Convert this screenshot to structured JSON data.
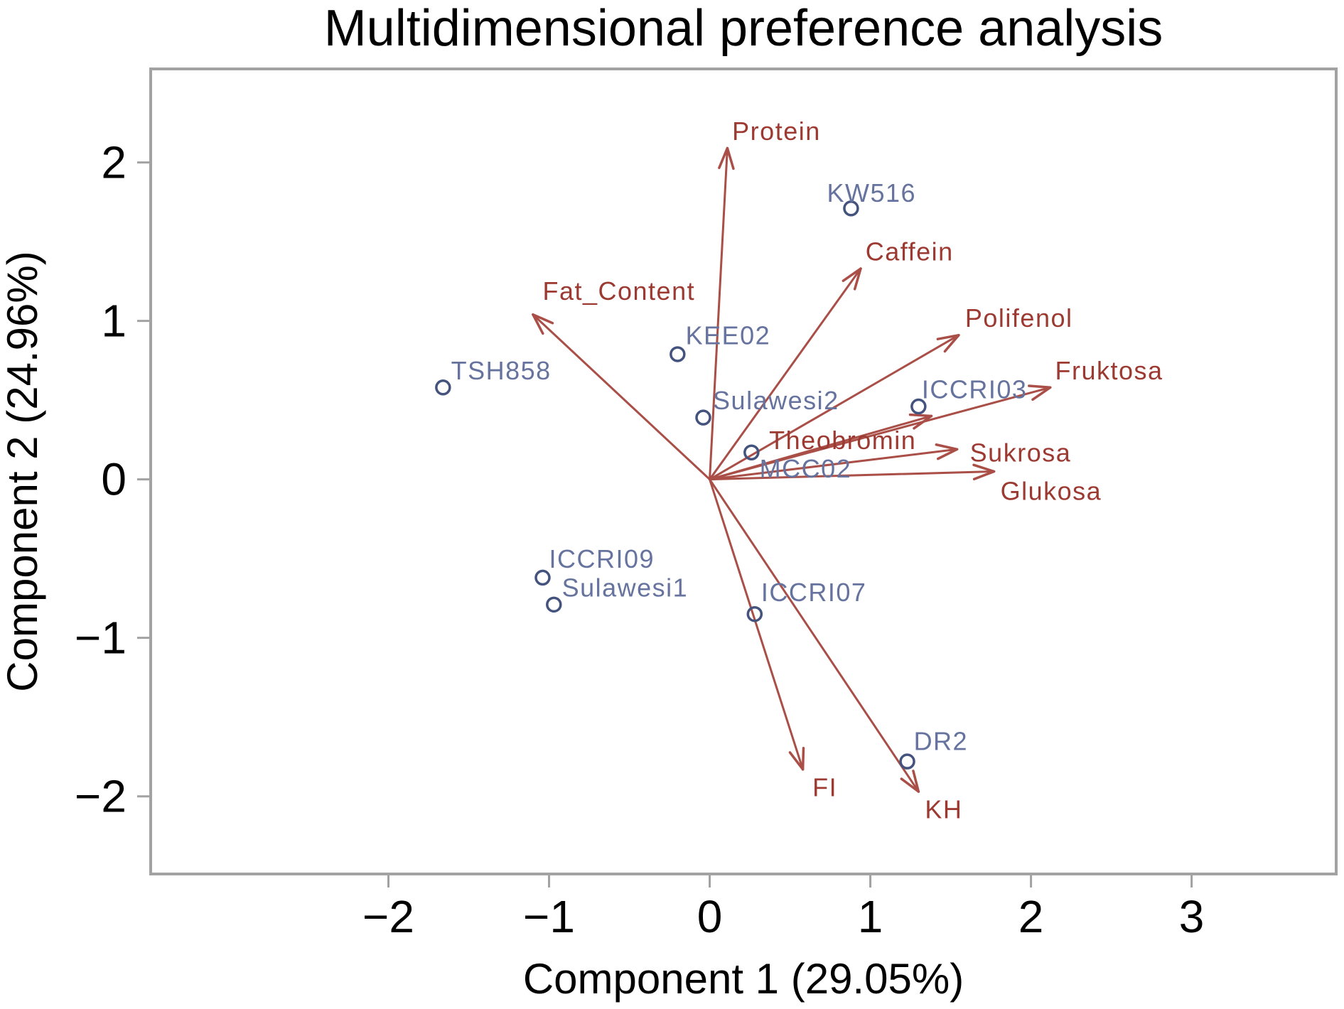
{
  "figure": {
    "title": "Multidimensional preference analysis"
  },
  "chart_data": {
    "type": "scatter",
    "subtype": "mdpref-biplot",
    "title": "Multidimensional preference analysis",
    "xlabel": "Component 1 (29.05%)",
    "ylabel": "Component 2 (24.96%)",
    "xlim": [
      -3.48,
      3.9
    ],
    "ylim": [
      -2.49,
      2.59
    ],
    "grid": false,
    "legend": "none",
    "x_ticks": [
      {
        "value": -2,
        "label": "−2"
      },
      {
        "value": -1,
        "label": "−1"
      },
      {
        "value": 0,
        "label": "0"
      },
      {
        "value": 1,
        "label": "1"
      },
      {
        "value": 2,
        "label": "2"
      },
      {
        "value": 3,
        "label": "3"
      }
    ],
    "y_ticks": [
      {
        "value": 2,
        "label": "2"
      },
      {
        "value": 1,
        "label": "1"
      },
      {
        "value": 0,
        "label": "0"
      },
      {
        "value": -1,
        "label": "−1"
      },
      {
        "value": -2,
        "label": "−2"
      }
    ],
    "colors": {
      "background": "#ffffff",
      "frame": "#a2a2a2",
      "tick": "#a2a2a2",
      "axis_text": "#000000",
      "arrow": "#aa4f47",
      "attribute_label": "#9c3a32",
      "sample_label": "#66739e",
      "sample_marker": "#44537e"
    },
    "vectors": [
      {
        "label": "Protein",
        "x": 0.11,
        "y": 2.09,
        "label_x": 0.14,
        "label_y": 2.2
      },
      {
        "label": "Caffein",
        "x": 0.94,
        "y": 1.33,
        "label_x": 0.97,
        "label_y": 1.44
      },
      {
        "label": "Fat_Content",
        "x": -1.1,
        "y": 1.04,
        "label_x": -1.04,
        "label_y": 1.19
      },
      {
        "label": "Polifenol",
        "x": 1.55,
        "y": 0.91,
        "label_x": 1.59,
        "label_y": 1.02
      },
      {
        "label": "Fruktosa",
        "x": 2.12,
        "y": 0.58,
        "label_x": 2.15,
        "label_y": 0.69
      },
      {
        "label": "Theobromin",
        "x": 1.38,
        "y": 0.4,
        "label_x": 0.37,
        "label_y": 0.25
      },
      {
        "label": "Sukrosa",
        "x": 1.54,
        "y": 0.19,
        "label_x": 1.62,
        "label_y": 0.17
      },
      {
        "label": "Glukosa",
        "x": 1.77,
        "y": 0.05,
        "label_x": 1.81,
        "label_y": -0.07
      },
      {
        "label": "FI",
        "x": 0.58,
        "y": -1.83,
        "label_x": 0.64,
        "label_y": -1.94
      },
      {
        "label": "KH",
        "x": 1.3,
        "y": -1.97,
        "label_x": 1.34,
        "label_y": -2.08
      }
    ],
    "points": [
      {
        "label": "KW516",
        "x": 0.88,
        "y": 1.71,
        "label_x": 0.73,
        "label_y": 1.81
      },
      {
        "label": "KEE02",
        "x": -0.2,
        "y": 0.79,
        "label_x": -0.15,
        "label_y": 0.91
      },
      {
        "label": "TSH858",
        "x": -1.66,
        "y": 0.58,
        "label_x": -1.61,
        "label_y": 0.69
      },
      {
        "label": "Sulawesi2",
        "x": -0.04,
        "y": 0.39,
        "label_x": 0.02,
        "label_y": 0.5
      },
      {
        "label": "MCC02",
        "x": 0.26,
        "y": 0.17,
        "label_x": 0.31,
        "label_y": 0.07
      },
      {
        "label": "ICCRI03",
        "x": 1.3,
        "y": 0.46,
        "label_x": 1.32,
        "label_y": 0.57
      },
      {
        "label": "ICCRI09",
        "x": -1.04,
        "y": -0.62,
        "label_x": -1.0,
        "label_y": -0.5
      },
      {
        "label": "Sulawesi1",
        "x": -0.97,
        "y": -0.79,
        "label_x": -0.92,
        "label_y": -0.68
      },
      {
        "label": "ICCRI07",
        "x": 0.28,
        "y": -0.85,
        "label_x": 0.32,
        "label_y": -0.71
      },
      {
        "label": "DR2",
        "x": 1.23,
        "y": -1.78,
        "label_x": 1.27,
        "label_y": -1.65
      }
    ]
  }
}
